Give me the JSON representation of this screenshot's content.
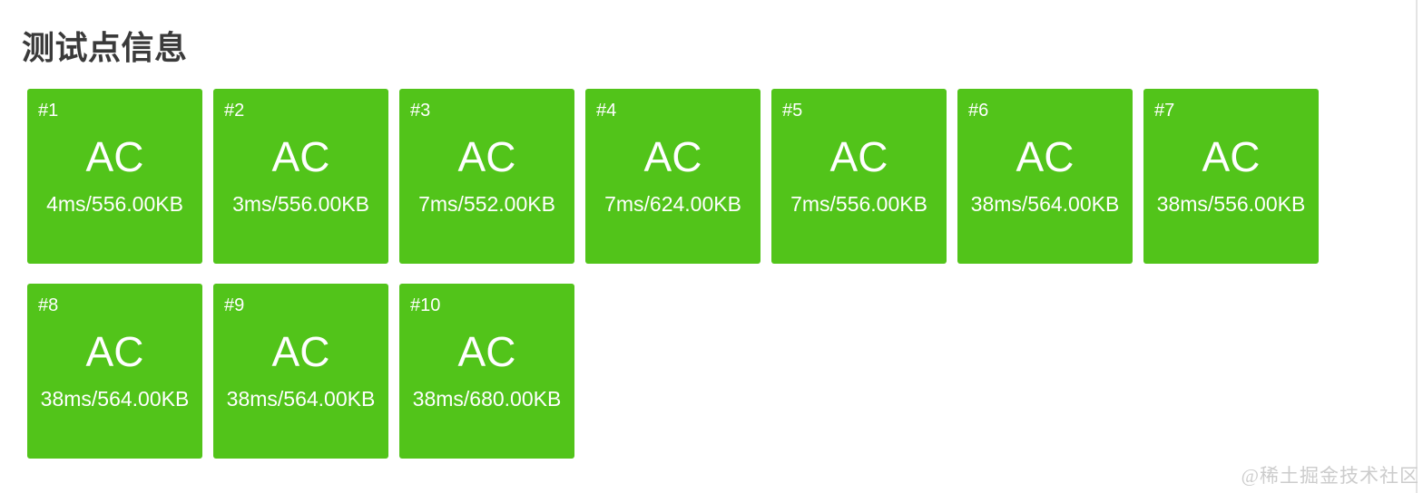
{
  "page": {
    "title": "测试点信息",
    "watermark": "@稀土掘金技术社区"
  },
  "colors": {
    "status_ac": "#52C41A",
    "card_text": "#FFFFFF",
    "title_text": "#3A3A3A",
    "watermark_text": "#CCCCCC",
    "edge_divider": "#E4E4E4"
  },
  "testcases": [
    {
      "id": "#1",
      "status": "AC",
      "detail": "4ms/556.00KB"
    },
    {
      "id": "#2",
      "status": "AC",
      "detail": "3ms/556.00KB"
    },
    {
      "id": "#3",
      "status": "AC",
      "detail": "7ms/552.00KB"
    },
    {
      "id": "#4",
      "status": "AC",
      "detail": "7ms/624.00KB"
    },
    {
      "id": "#5",
      "status": "AC",
      "detail": "7ms/556.00KB"
    },
    {
      "id": "#6",
      "status": "AC",
      "detail": "38ms/564.00KB"
    },
    {
      "id": "#7",
      "status": "AC",
      "detail": "38ms/556.00KB"
    },
    {
      "id": "#8",
      "status": "AC",
      "detail": "38ms/564.00KB"
    },
    {
      "id": "#9",
      "status": "AC",
      "detail": "38ms/564.00KB"
    },
    {
      "id": "#10",
      "status": "AC",
      "detail": "38ms/680.00KB"
    }
  ]
}
